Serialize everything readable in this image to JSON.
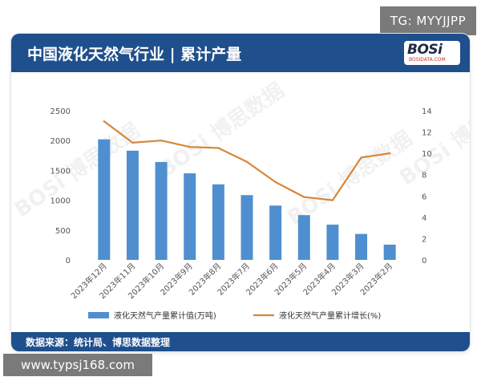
{
  "overlay": {
    "tag_top": "TG: MYYJJPP",
    "tag_bottom": "www.typsj168.com"
  },
  "header": {
    "title": "中国液化天然气行业 | 累计产量",
    "logo_text": "BOSi",
    "logo_sub": "BOSIDATA.COM"
  },
  "footer": {
    "source": "数据来源：统计局、博思数据整理"
  },
  "watermark": {
    "text": "BOSi 博思数据"
  },
  "colors": {
    "header_bg": "#1f4f8c",
    "bar": "#4f8fd0",
    "line": "#d7873a",
    "axis_text": "#555555"
  },
  "chart_data": {
    "type": "bar",
    "categories": [
      "2023年12月",
      "2023年11月",
      "2023年10月",
      "2023年9月",
      "2023年8月",
      "2023年7月",
      "2023年6月",
      "2023年5月",
      "2023年4月",
      "2023年3月",
      "2023年2月"
    ],
    "series": [
      {
        "name": "液化天然气产量累计值(万吨)",
        "type": "bar",
        "axis": "left",
        "values": [
          2020,
          1830,
          1640,
          1450,
          1265,
          1085,
          910,
          750,
          590,
          435,
          255
        ]
      },
      {
        "name": "液化天然气产量累计增长(%)",
        "type": "line",
        "axis": "right",
        "values": [
          13.0,
          11.0,
          11.2,
          10.6,
          10.5,
          9.2,
          7.3,
          5.9,
          5.6,
          9.6,
          10.0
        ]
      }
    ],
    "left_axis": {
      "ticks": [
        "0",
        "500",
        "1000",
        "1500",
        "2000",
        "2500"
      ],
      "ylim": [
        0,
        2500
      ]
    },
    "right_axis": {
      "ticks": [
        "0",
        "2",
        "4",
        "6",
        "8",
        "10",
        "12",
        "14"
      ],
      "ylim": [
        0,
        14
      ]
    },
    "grid": false,
    "legend_position": "bottom"
  }
}
